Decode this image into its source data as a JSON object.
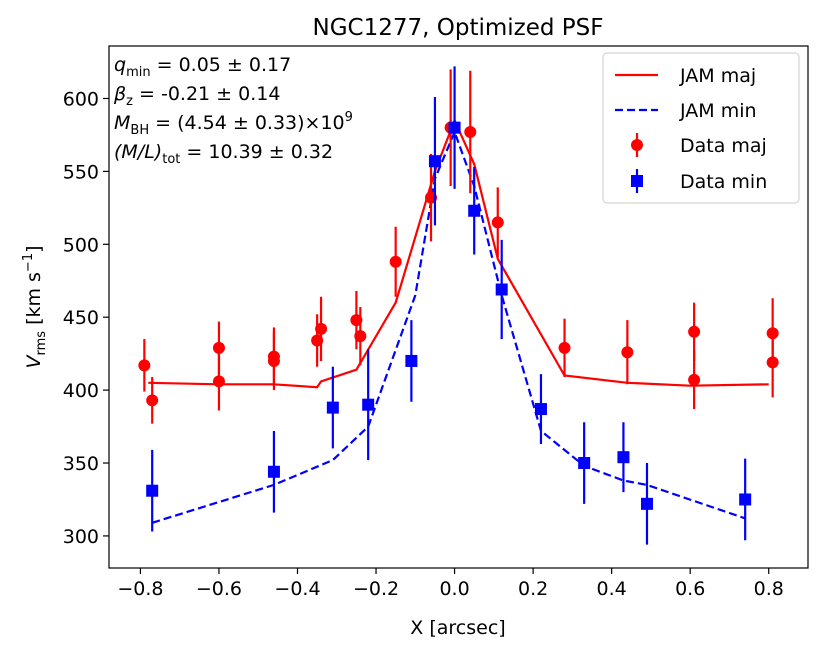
{
  "chart_data": {
    "type": "scatter",
    "title": "NGC1277, Optimized PSF",
    "xlabel": "X [arcsec]",
    "ylabel": "V_rms [km s^-1]",
    "xlim": [
      -0.88,
      0.9
    ],
    "ylim": [
      278,
      636
    ],
    "xticks": [
      -0.8,
      -0.6,
      -0.4,
      -0.2,
      0.0,
      0.2,
      0.4,
      0.6,
      0.8
    ],
    "xtick_labels": [
      "−0.8",
      "−0.6",
      "−0.4",
      "−0.2",
      "0.0",
      "0.2",
      "0.4",
      "0.6",
      "0.8"
    ],
    "yticks": [
      300,
      350,
      400,
      450,
      500,
      550,
      600
    ],
    "ytick_labels": [
      "300",
      "350",
      "400",
      "450",
      "500",
      "550",
      "600"
    ],
    "annotations": [
      {
        "sym": "q",
        "sub": "min",
        "text": " = 0.05 ± 0.17"
      },
      {
        "sym": "β",
        "sub": "z",
        "text": " = -0.21 ± 0.14"
      },
      {
        "sym": "M",
        "sub": "BH",
        "text": " = (4.54 ± 0.33)×10",
        "sup": "9"
      },
      {
        "sym": "(M/L)",
        "sub": "tot",
        "text": " = 10.39 ± 0.32"
      }
    ],
    "legend": {
      "position": "top-right",
      "entries": [
        "JAM maj",
        "JAM min",
        "Data maj",
        "Data min"
      ]
    },
    "colors": {
      "maj": "#ff0000",
      "min": "#0000ff"
    },
    "model_maj": {
      "name": "JAM maj",
      "x": [
        -0.78,
        -0.6,
        -0.46,
        -0.35,
        -0.34,
        -0.25,
        -0.15,
        -0.05,
        0.0,
        0.05,
        0.11,
        0.28,
        0.44,
        0.6,
        0.8
      ],
      "y": [
        405,
        404,
        404,
        402,
        406,
        414,
        460,
        550,
        585,
        555,
        490,
        410,
        405,
        403,
        404
      ]
    },
    "model_min": {
      "name": "JAM min",
      "x": [
        -0.77,
        -0.46,
        -0.31,
        -0.22,
        -0.1,
        -0.05,
        0.0,
        0.05,
        0.12,
        0.22,
        0.33,
        0.43,
        0.49,
        0.74
      ],
      "y": [
        309,
        335,
        352,
        375,
        465,
        545,
        577,
        540,
        465,
        372,
        348,
        338,
        335,
        312
      ]
    },
    "data_maj": {
      "name": "Data maj",
      "x": [
        -0.79,
        -0.77,
        -0.6,
        -0.6,
        -0.46,
        -0.46,
        -0.35,
        -0.34,
        -0.25,
        -0.24,
        -0.15,
        -0.06,
        -0.01,
        0.04,
        0.11,
        0.28,
        0.44,
        0.61,
        0.61,
        0.81,
        0.81
      ],
      "y": [
        417,
        393,
        429,
        406,
        423,
        420,
        434,
        442,
        448,
        437,
        488,
        532,
        580,
        577,
        515,
        429,
        426,
        440,
        407,
        419,
        439
      ],
      "err": [
        18,
        16,
        18,
        20,
        20,
        20,
        18,
        22,
        20,
        20,
        24,
        30,
        40,
        42,
        24,
        20,
        22,
        20,
        20,
        24,
        24
      ]
    },
    "data_min": {
      "name": "Data min",
      "x": [
        -0.77,
        -0.46,
        -0.31,
        -0.22,
        -0.11,
        -0.05,
        0.0,
        0.05,
        0.12,
        0.22,
        0.33,
        0.43,
        0.49,
        0.74
      ],
      "y": [
        331,
        344,
        388,
        390,
        420,
        557,
        580,
        523,
        469,
        387,
        350,
        354,
        322,
        325
      ],
      "err": [
        28,
        28,
        28,
        38,
        28,
        44,
        42,
        30,
        34,
        24,
        28,
        24,
        28,
        28
      ]
    }
  }
}
